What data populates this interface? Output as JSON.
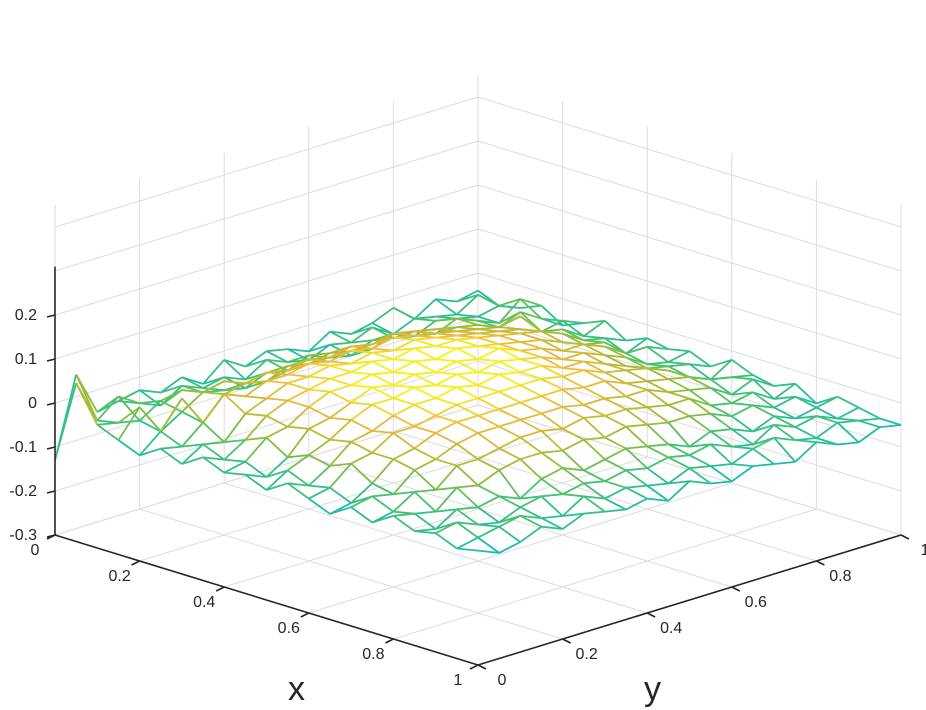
{
  "chart_data": {
    "type": "surface-mesh",
    "xlabel": "x",
    "ylabel": "y",
    "zlabel": "",
    "xlim": [
      0,
      1
    ],
    "ylim": [
      0,
      1
    ],
    "zlim": [
      -0.3,
      0.3
    ],
    "x_ticks": [
      "0",
      "0.2",
      "0.4",
      "0.6",
      "0.8",
      "1"
    ],
    "y_ticks": [
      "0",
      "0.2",
      "0.4",
      "0.6",
      "0.8",
      "1"
    ],
    "z_ticks": [
      "-0.3",
      "-0.2",
      "-0.1",
      "0",
      "0.1",
      "0.2"
    ],
    "grid": true,
    "colormap": "parula",
    "colormap_stops": [
      "#3e26a8",
      "#2d6ad6",
      "#1fa1e1",
      "#1cbcaf",
      "#4ac16d",
      "#8cbf3b",
      "#c4b935",
      "#eeba3a",
      "#f9fb15"
    ],
    "mesh_resolution": [
      21,
      21
    ],
    "surface_description_values": {
      "peak_z": 0.08,
      "min_z": -0.13,
      "edge_noise_amplitude": 0.06
    },
    "z_matrix_rows": [
      [
        -0.13,
        0.05,
        -0.05,
        -0.04,
        -0.03,
        -0.05,
        -0.03,
        -0.06,
        -0.02,
        -0.05,
        -0.03,
        -0.04,
        -0.06,
        -0.03,
        -0.05,
        -0.04,
        -0.02,
        -0.06,
        -0.03,
        -0.05,
        -0.04
      ],
      [
        0.06,
        -0.04,
        0.0,
        -0.03,
        -0.05,
        -0.02,
        -0.04,
        -0.03,
        -0.05,
        -0.02,
        -0.04,
        -0.05,
        -0.03,
        -0.04,
        -0.02,
        -0.05,
        -0.03,
        -0.04,
        -0.05,
        -0.02,
        -0.06
      ],
      [
        -0.02,
        -0.03,
        -0.04,
        -0.01,
        0.0,
        -0.02,
        -0.03,
        -0.04,
        -0.02,
        -0.03,
        -0.01,
        -0.03,
        -0.04,
        -0.02,
        -0.03,
        -0.04,
        -0.02,
        -0.03,
        -0.04,
        -0.03,
        -0.05
      ],
      [
        -0.04,
        0.02,
        -0.05,
        -0.02,
        0.01,
        0.02,
        0.0,
        -0.01,
        0.01,
        0.0,
        0.01,
        0.0,
        -0.01,
        0.01,
        0.0,
        -0.02,
        0.0,
        -0.02,
        -0.04,
        0.0,
        -0.03
      ],
      [
        -0.06,
        -0.02,
        0.04,
        -0.03,
        0.02,
        0.03,
        0.04,
        0.03,
        0.04,
        0.03,
        0.04,
        0.03,
        0.04,
        0.03,
        0.02,
        0.01,
        0.0,
        -0.02,
        0.0,
        -0.03,
        -0.06
      ],
      [
        -0.03,
        -0.04,
        0.0,
        0.05,
        0.03,
        0.05,
        0.05,
        0.06,
        0.05,
        0.06,
        0.05,
        0.06,
        0.05,
        0.04,
        0.03,
        0.02,
        0.01,
        0.02,
        -0.03,
        -0.02,
        -0.04
      ],
      [
        -0.05,
        -0.02,
        -0.03,
        0.02,
        0.04,
        0.06,
        0.06,
        0.07,
        0.06,
        0.07,
        0.06,
        0.07,
        0.06,
        0.05,
        0.04,
        0.03,
        0.02,
        0.0,
        -0.01,
        -0.04,
        -0.02
      ],
      [
        -0.02,
        -0.04,
        -0.01,
        0.03,
        0.05,
        0.06,
        0.07,
        0.07,
        0.08,
        0.07,
        0.08,
        0.07,
        0.07,
        0.06,
        0.05,
        0.04,
        0.03,
        0.01,
        -0.02,
        -0.03,
        -0.05
      ],
      [
        -0.04,
        -0.03,
        0.01,
        0.02,
        0.05,
        0.07,
        0.07,
        0.08,
        0.07,
        0.08,
        0.07,
        0.08,
        0.07,
        0.06,
        0.05,
        0.04,
        0.02,
        0.0,
        -0.01,
        -0.05,
        -0.03
      ],
      [
        -0.03,
        -0.05,
        -0.02,
        0.03,
        0.04,
        0.06,
        0.08,
        0.07,
        0.08,
        0.07,
        0.08,
        0.07,
        0.08,
        0.06,
        0.05,
        0.03,
        0.03,
        0.01,
        -0.02,
        -0.02,
        -0.04
      ],
      [
        -0.05,
        -0.02,
        0.0,
        0.02,
        0.05,
        0.07,
        0.07,
        0.08,
        0.07,
        0.08,
        0.07,
        0.08,
        0.07,
        0.06,
        0.04,
        0.04,
        0.02,
        0.0,
        -0.03,
        -0.04,
        -0.03
      ],
      [
        -0.02,
        -0.04,
        -0.01,
        0.03,
        0.04,
        0.06,
        0.07,
        0.07,
        0.08,
        0.07,
        0.08,
        0.07,
        0.07,
        0.05,
        0.05,
        0.03,
        0.01,
        -0.01,
        -0.02,
        -0.03,
        -0.05
      ],
      [
        -0.04,
        -0.03,
        0.01,
        0.02,
        0.05,
        0.05,
        0.06,
        0.07,
        0.07,
        0.07,
        0.07,
        0.07,
        0.06,
        0.06,
        0.04,
        0.03,
        0.02,
        0.0,
        -0.03,
        -0.05,
        -0.02
      ],
      [
        -0.06,
        -0.05,
        -0.02,
        0.02,
        0.03,
        0.05,
        0.06,
        0.06,
        0.06,
        0.06,
        0.06,
        0.06,
        0.05,
        0.05,
        0.03,
        0.02,
        0.01,
        0.0,
        -0.02,
        -0.03,
        -0.04
      ],
      [
        -0.03,
        -0.02,
        -0.03,
        0.01,
        0.02,
        0.04,
        0.05,
        0.05,
        0.05,
        0.05,
        0.05,
        0.04,
        0.04,
        0.03,
        0.03,
        0.01,
        0.0,
        -0.01,
        -0.04,
        -0.02,
        -0.05
      ],
      [
        -0.05,
        -0.04,
        -0.01,
        -0.02,
        0.02,
        0.02,
        0.03,
        0.04,
        0.04,
        0.03,
        0.04,
        0.03,
        0.03,
        0.02,
        0.01,
        0.01,
        -0.02,
        -0.03,
        -0.02,
        -0.05,
        -0.03
      ],
      [
        -0.02,
        -0.03,
        -0.04,
        0.0,
        -0.01,
        0.01,
        0.02,
        0.02,
        0.01,
        0.02,
        0.01,
        0.02,
        0.01,
        0.0,
        0.0,
        -0.01,
        -0.03,
        -0.02,
        -0.04,
        -0.03,
        -0.06
      ],
      [
        -0.04,
        -0.05,
        -0.02,
        -0.03,
        -0.02,
        -0.04,
        -0.01,
        0.0,
        -0.02,
        -0.01,
        0.0,
        -0.01,
        -0.02,
        -0.04,
        -0.02,
        -0.03,
        -0.05,
        -0.03,
        -0.05,
        -0.04,
        -0.03
      ],
      [
        -0.03,
        -0.02,
        -0.04,
        -0.05,
        -0.03,
        -0.02,
        -0.03,
        -0.02,
        -0.03,
        -0.02,
        -0.03,
        -0.02,
        -0.03,
        -0.02,
        -0.04,
        -0.05,
        -0.02,
        -0.04,
        -0.03,
        -0.05,
        -0.04
      ],
      [
        -0.05,
        -0.04,
        -0.03,
        -0.02,
        -0.04,
        -0.05,
        -0.02,
        -0.04,
        -0.03,
        -0.04,
        -0.05,
        -0.03,
        -0.04,
        -0.05,
        -0.03,
        -0.02,
        -0.04,
        -0.05,
        -0.03,
        -0.04,
        -0.05
      ],
      [
        -0.04,
        -0.06,
        -0.05,
        -0.03,
        -0.05,
        -0.03,
        -0.04,
        -0.05,
        -0.04,
        -0.06,
        -0.03,
        -0.05,
        -0.06,
        -0.04,
        -0.05,
        -0.06,
        -0.03,
        -0.05,
        -0.06,
        -0.04,
        -0.05
      ]
    ]
  }
}
